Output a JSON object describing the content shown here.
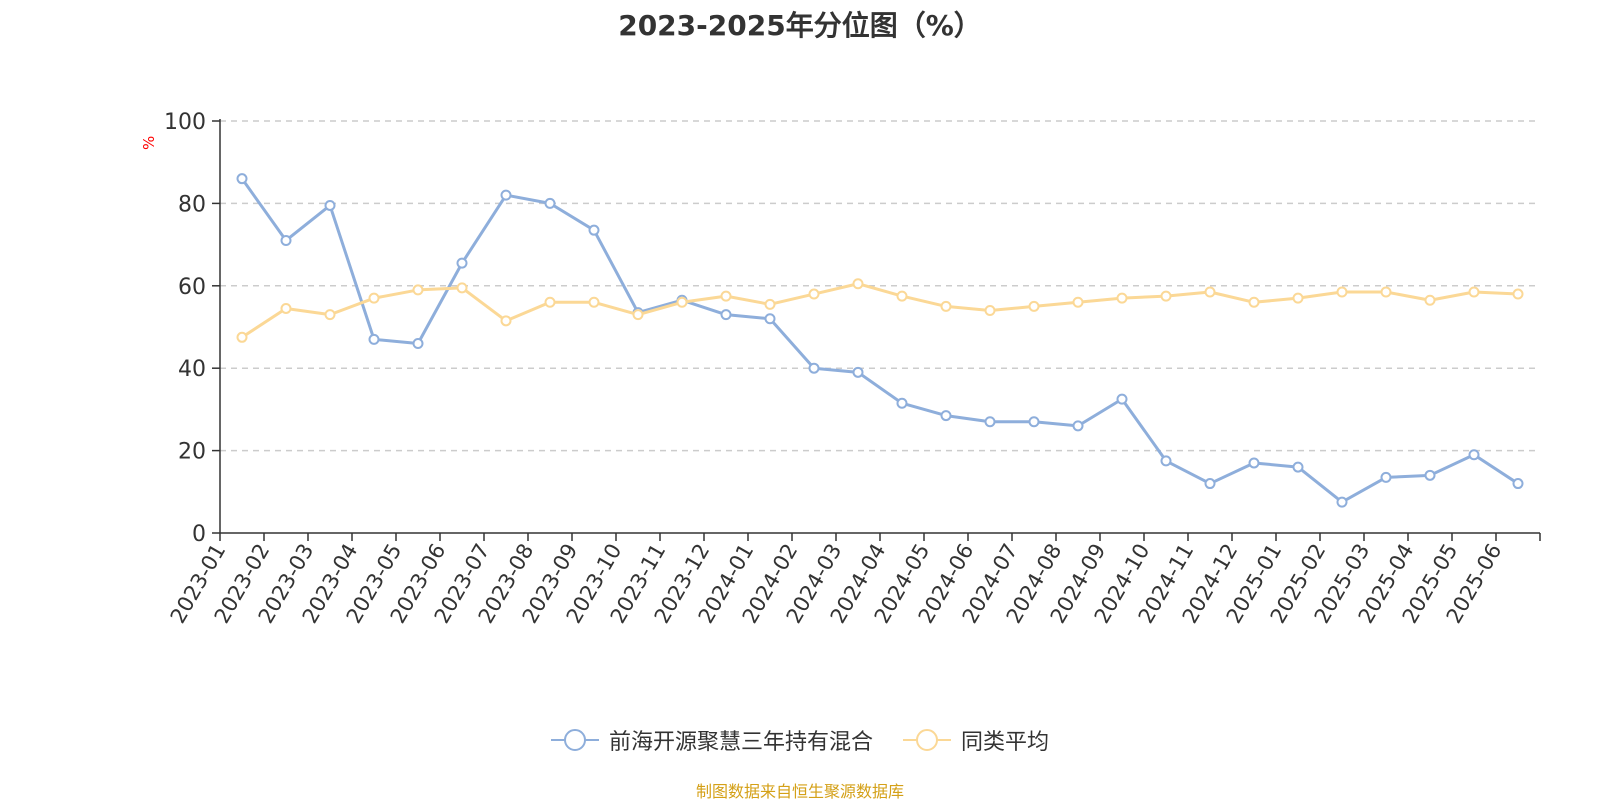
{
  "chart_data": {
    "type": "line",
    "title": "2023-2025年分位图（%）",
    "ylabel": "%",
    "xlabel": "",
    "ylim": [
      0,
      100
    ],
    "yticks": [
      0,
      20,
      40,
      60,
      80,
      100
    ],
    "grid": true,
    "legend_position": "bottom",
    "categories": [
      "2023-01",
      "2023-02",
      "2023-03",
      "2023-04",
      "2023-05",
      "2023-06",
      "2023-07",
      "2023-08",
      "2023-09",
      "2023-10",
      "2023-11",
      "2023-12",
      "2024-01",
      "2024-02",
      "2024-03",
      "2024-04",
      "2024-05",
      "2024-06",
      "2024-07",
      "2024-08",
      "2024-09",
      "2024-10",
      "2024-11",
      "2024-12",
      "2025-01",
      "2025-02",
      "2025-03",
      "2025-04",
      "2025-05",
      "2025-06"
    ],
    "series": [
      {
        "name": "前海开源聚慧三年持有混合",
        "color": "#8eaedb",
        "values": [
          86,
          71,
          79.5,
          47,
          46,
          65.5,
          82,
          80,
          73.5,
          53.5,
          56.5,
          53,
          52,
          40,
          39,
          31.5,
          28.5,
          27,
          27,
          26,
          32.5,
          17.5,
          12,
          17,
          16,
          7.5,
          13.5,
          14,
          19,
          12
        ]
      },
      {
        "name": "同类平均",
        "color": "#fbd896",
        "values": [
          47.5,
          54.5,
          53,
          57,
          59,
          59.5,
          51.5,
          56,
          56,
          53,
          56,
          57.5,
          55.5,
          58,
          60.5,
          57.5,
          55,
          54,
          55,
          56,
          57,
          57.5,
          58.5,
          56,
          57,
          58.5,
          58.5,
          56.5,
          58.5,
          58
        ]
      }
    ]
  },
  "colors": {
    "title": "#333333",
    "axis": "#333333",
    "grid": "#cccccc",
    "ylabel": "#ff0000",
    "source": "#d4a017"
  },
  "source_text": "制图数据来自恒生聚源数据库"
}
